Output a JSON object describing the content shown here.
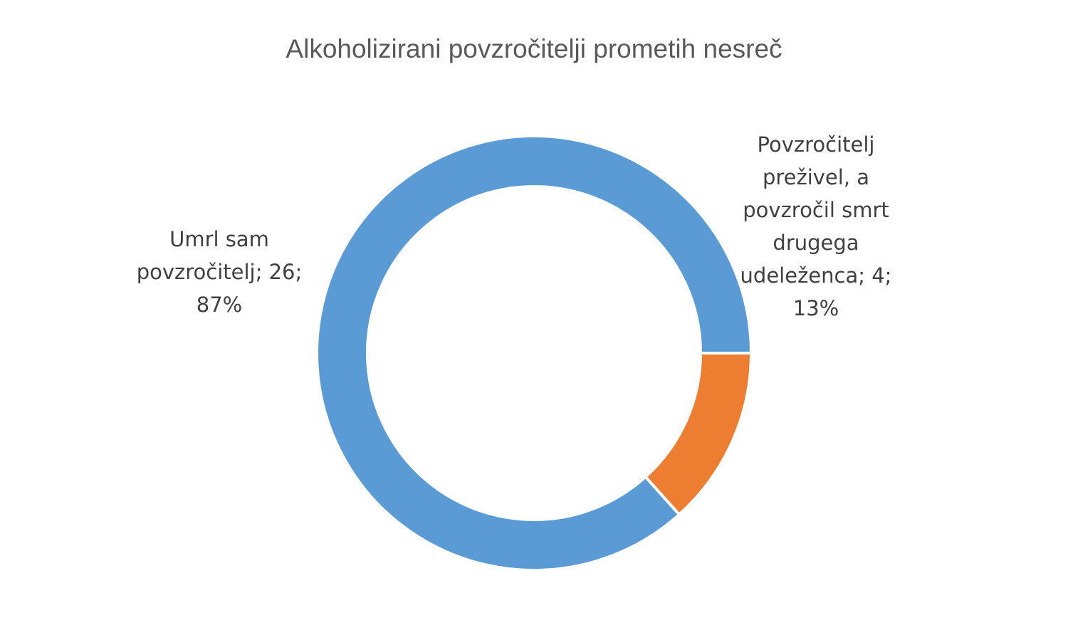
{
  "chart_data": {
    "type": "pie",
    "variant": "doughnut",
    "title": "Alkoholizirani povzročitelji prometih nesreč",
    "slices": [
      {
        "name": "Umrl sam povzročitelj",
        "value": 26,
        "percent": "87%",
        "color": "#5B9BD5",
        "label_lines": [
          "Umrl sam",
          "povzročitelj; 26;",
          "87%"
        ]
      },
      {
        "name": "Povzročitelj preživel, a povzročil smrt drugega udeleženca",
        "value": 4,
        "percent": "13%",
        "color": "#ED7D31",
        "label_lines": [
          "Povzročitelj",
          "preživel, a",
          "povzročil smrt",
          "drugega",
          "udeleženca; 4;",
          "13%"
        ]
      }
    ],
    "legend": "none"
  }
}
